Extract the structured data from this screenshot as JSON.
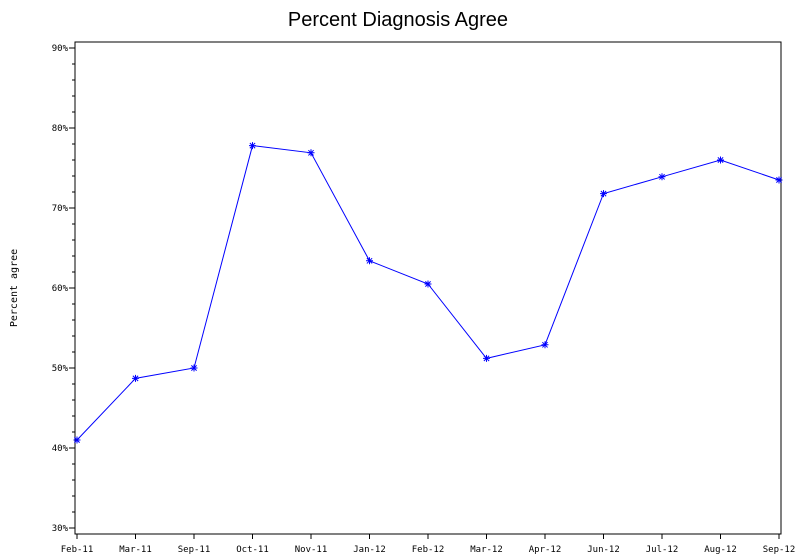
{
  "chart_data": {
    "type": "line",
    "title": "Percent Diagnosis Agree",
    "xlabel": "",
    "ylabel": "Percent agree",
    "categories": [
      "Feb-11",
      "Mar-11",
      "Sep-11",
      "Oct-11",
      "Nov-11",
      "Jan-12",
      "Feb-12",
      "Mar-12",
      "Apr-12",
      "Jun-12",
      "Jul-12",
      "Aug-12",
      "Sep-12"
    ],
    "series": [
      {
        "values": [
          41.0,
          48.7,
          50.0,
          77.8,
          76.9,
          63.4,
          60.5,
          51.2,
          52.9,
          71.8,
          73.9,
          76.0,
          73.5
        ]
      }
    ],
    "ylim": [
      30,
      90
    ],
    "yticks": [
      30,
      40,
      50,
      60,
      70,
      80,
      90
    ],
    "ytick_labels": [
      "30%",
      "40%",
      "50%",
      "60%",
      "70%",
      "80%",
      "90%"
    ],
    "grid": false,
    "line_color": "#0000ff",
    "marker": "asterisk"
  }
}
